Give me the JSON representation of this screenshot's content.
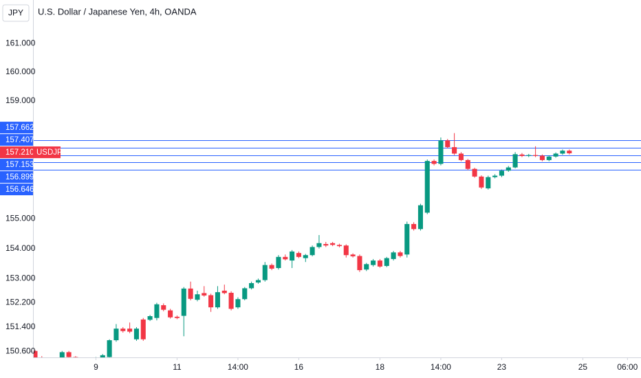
{
  "chart_data": {
    "type": "candlestick",
    "title": "U.S. Dollar / Japanese Yen, 4h, OANDA",
    "currency": "JPY",
    "log_scale": true,
    "up_color": "#089981",
    "down_color": "#f23645",
    "line_color": "#2962ff",
    "ylim": [
      150.41,
      162.52
    ],
    "yticks": [
      {
        "value": 161,
        "label": "161.000"
      },
      {
        "value": 160,
        "label": "160.000"
      },
      {
        "value": 159,
        "label": "159.000"
      },
      {
        "value": 155,
        "label": "155.000"
      },
      {
        "value": 154,
        "label": "154.000"
      },
      {
        "value": 153,
        "label": "153.000"
      },
      {
        "value": 152.2,
        "label": "152.200"
      },
      {
        "value": 151.4,
        "label": "151.400"
      },
      {
        "value": 150.6,
        "label": "150.600"
      }
    ],
    "xlim": [
      -0.3,
      89.6
    ],
    "xticks": [
      {
        "value": 9,
        "label": "9"
      },
      {
        "value": 21,
        "label": "11"
      },
      {
        "value": 30,
        "label": "14:00"
      },
      {
        "value": 39,
        "label": "16"
      },
      {
        "value": 51,
        "label": "18"
      },
      {
        "value": 60,
        "label": "14:00"
      },
      {
        "value": 69,
        "label": "23"
      },
      {
        "value": 81,
        "label": "25"
      },
      {
        "value": 87.6,
        "label": "06:00"
      }
    ],
    "price_lines": [
      {
        "value": 157.662,
        "label": "157.662"
      },
      {
        "value": 157.407,
        "label": "157.407"
      },
      {
        "value": 157.153,
        "label": "157.153"
      },
      {
        "value": 156.899,
        "label": "156.899"
      },
      {
        "value": 156.646,
        "label": "156.646"
      }
    ],
    "last_price": {
      "value": 157.21,
      "label": "157.210",
      "symbol": "USDJPY"
    },
    "x": [
      0,
      1,
      2,
      3,
      4,
      5,
      6,
      7,
      8,
      9,
      10,
      11,
      12,
      13,
      14,
      15,
      16,
      17,
      18,
      19,
      20,
      21,
      22,
      23,
      24,
      25,
      26,
      27,
      28,
      29,
      30,
      31,
      32,
      33,
      34,
      35,
      36,
      37,
      38,
      39,
      40,
      41,
      42,
      43,
      44,
      45,
      46,
      47,
      48,
      49,
      50,
      51,
      52,
      53,
      54,
      55,
      56,
      57,
      58,
      59,
      60,
      61,
      62,
      63,
      64,
      65,
      66,
      67,
      68,
      69,
      70,
      71,
      72,
      73,
      74,
      75,
      76,
      77,
      78,
      79
    ],
    "open": [
      150.62,
      150.4,
      150.3,
      150.25,
      150.35,
      150.58,
      150.42,
      150.3,
      150.2,
      150.25,
      150.4,
      150.42,
      150.97,
      151.35,
      151.35,
      151.0,
      151.65,
      151.64,
      151.7,
      152.12,
      151.95,
      151.74,
      151.77,
      152.67,
      152.3,
      152.52,
      152.45,
      152.05,
      152.6,
      152.53,
      152.05,
      152.32,
      152.68,
      152.87,
      152.95,
      153.45,
      153.35,
      153.72,
      153.6,
      153.85,
      153.68,
      153.78,
      154.05,
      154.15,
      154.18,
      154.12,
      154.1,
      153.8,
      153.75,
      153.3,
      153.45,
      153.6,
      153.42,
      153.65,
      153.87,
      153.8,
      154.82,
      154.65,
      155.2,
      156.95,
      156.85,
      157.65,
      157.42,
      157.2,
      156.98,
      156.68,
      156.42,
      156.02,
      156.4,
      156.45,
      156.62,
      156.73,
      157.17,
      157.12,
      157.15,
      157.13,
      156.98,
      157.1,
      157.2,
      157.3
    ],
    "high": [
      150.65,
      150.45,
      150.35,
      150.38,
      150.62,
      150.62,
      150.45,
      150.33,
      150.28,
      150.42,
      150.52,
      151.0,
      151.5,
      151.4,
      151.55,
      151.4,
      151.7,
      151.8,
      152.2,
      152.18,
      152.0,
      151.78,
      152.72,
      152.9,
      152.6,
      152.75,
      152.5,
      152.75,
      152.8,
      152.58,
      152.38,
      152.72,
      152.9,
      153.0,
      153.55,
      153.5,
      153.78,
      153.8,
      153.95,
      153.9,
      153.82,
      154.1,
      154.45,
      154.22,
      154.22,
      154.16,
      154.14,
      153.84,
      153.8,
      153.52,
      153.65,
      153.65,
      153.72,
      153.92,
      153.92,
      154.9,
      154.88,
      155.5,
      157.0,
      157.0,
      157.75,
      157.7,
      157.9,
      157.25,
      157.02,
      156.72,
      156.46,
      156.45,
      156.5,
      156.66,
      156.78,
      157.25,
      157.22,
      157.19,
      157.45,
      157.17,
      157.14,
      157.24,
      157.34,
      157.34
    ],
    "low": [
      150.38,
      150.25,
      150.2,
      150.22,
      150.32,
      150.38,
      150.25,
      150.15,
      150.17,
      150.22,
      150.36,
      150.38,
      150.92,
      151.22,
      151.2,
      150.95,
      150.95,
      151.6,
      151.62,
      151.92,
      151.68,
      151.66,
      151.1,
      152.28,
      152.25,
      152.4,
      151.9,
      152.0,
      152.48,
      151.95,
      152.0,
      152.28,
      152.64,
      152.83,
      152.9,
      153.28,
      153.3,
      153.6,
      153.35,
      153.68,
      153.55,
      153.74,
      154.0,
      154.05,
      154.08,
      154.04,
      153.7,
      153.7,
      153.22,
      153.25,
      153.4,
      153.36,
      153.38,
      153.6,
      153.7,
      153.7,
      154.6,
      154.6,
      155.15,
      156.8,
      156.8,
      157.38,
      157.15,
      156.94,
      156.64,
      156.38,
      156.0,
      155.98,
      156.36,
      156.4,
      156.58,
      156.7,
      157.08,
      157.08,
      157.08,
      156.94,
      156.94,
      157.06,
      157.16,
      157.17
    ],
    "close": [
      150.4,
      150.3,
      150.25,
      150.35,
      150.58,
      150.42,
      150.3,
      150.2,
      150.25,
      150.4,
      150.48,
      150.97,
      151.35,
      151.27,
      151.25,
      151.35,
      151.0,
      151.76,
      152.15,
      151.97,
      151.72,
      151.7,
      152.67,
      152.33,
      152.48,
      152.44,
      152.05,
      152.55,
      152.52,
      152.0,
      152.32,
      152.68,
      152.85,
      152.95,
      153.45,
      153.33,
      153.72,
      153.64,
      153.9,
      153.72,
      153.78,
      154.05,
      154.18,
      154.1,
      154.12,
      154.08,
      153.78,
      153.74,
      153.28,
      153.48,
      153.6,
      153.4,
      153.68,
      153.87,
      153.75,
      154.82,
      154.65,
      155.45,
      156.95,
      156.85,
      157.65,
      157.42,
      157.2,
      156.98,
      156.68,
      156.42,
      156.05,
      156.4,
      156.45,
      156.62,
      156.73,
      157.18,
      157.12,
      157.15,
      157.12,
      156.98,
      157.1,
      157.2,
      157.3,
      157.21
    ]
  }
}
